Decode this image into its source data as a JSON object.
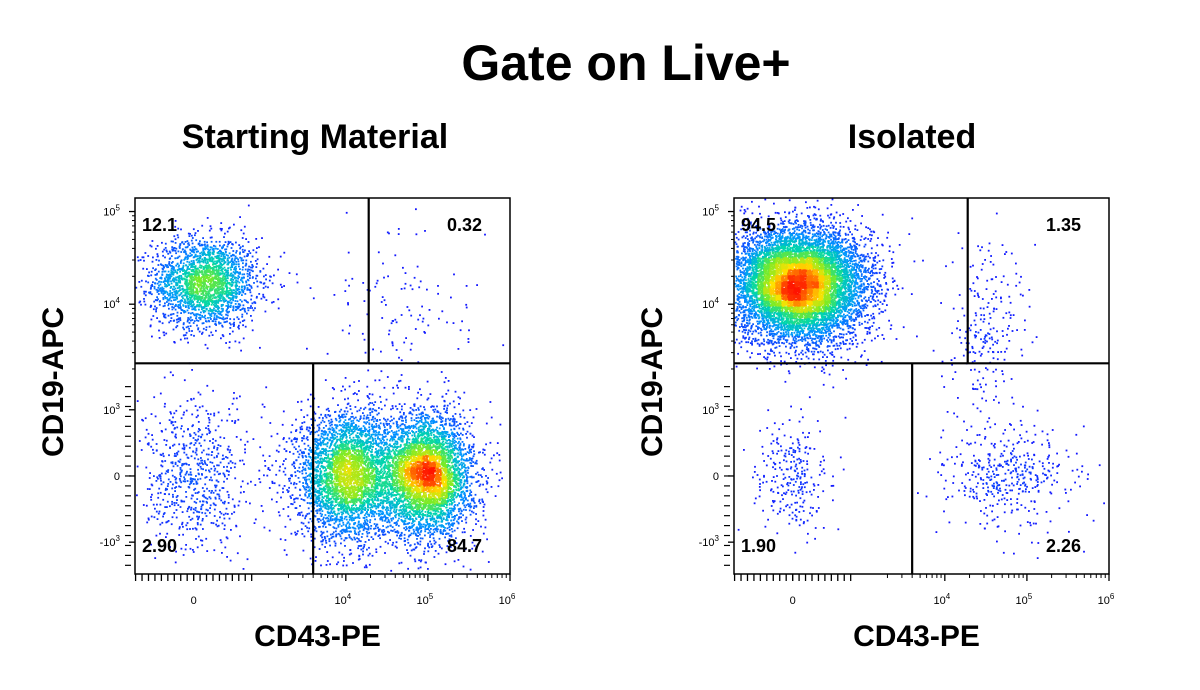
{
  "title": "Gate on Live+",
  "colors": {
    "density_low": "#1a1aff",
    "density_high": "#ff1a00",
    "line": "#000000"
  },
  "chart_data": [
    {
      "type": "scatter",
      "subtype": "flow-cytometry-density-dot-plot",
      "title": "Starting Material",
      "xlabel": "CD43-PE",
      "ylabel": "CD19-APC",
      "x_scale": "biexponential",
      "y_scale": "biexponential",
      "xlim": [
        -1000,
        1000000
      ],
      "ylim": [
        -1600,
        140000
      ],
      "x_ticks": [
        {
          "value": 0,
          "label": "0"
        },
        {
          "value": 10000,
          "label": "10",
          "sup": "4"
        },
        {
          "value": 100000,
          "label": "10",
          "sup": "5"
        },
        {
          "value": 1000000,
          "label": "10",
          "sup": "6"
        }
      ],
      "y_ticks": [
        {
          "value": 100000,
          "label": "10",
          "sup": "5"
        },
        {
          "value": 10000,
          "label": "10",
          "sup": "4"
        },
        {
          "value": 1000,
          "label": "10",
          "sup": "3"
        },
        {
          "value": 0,
          "label": "0"
        },
        {
          "value": -1000,
          "label": "-10",
          "sup": "3"
        }
      ],
      "gates": {
        "y_split": 2300,
        "x_split_upper": 19000,
        "x_split_lower": 4000
      },
      "quadrants": [
        {
          "position": "top-left",
          "value": "12.1"
        },
        {
          "position": "top-right",
          "value": "0.32"
        },
        {
          "position": "bottom-left",
          "value": "2.90"
        },
        {
          "position": "bottom-right",
          "value": "84.7"
        }
      ],
      "populations": [
        {
          "x": 200,
          "y": 17000,
          "sx": 0.07,
          "sy": 0.06,
          "n": 2300
        },
        {
          "x": 11000,
          "y": 0,
          "sx": 0.07,
          "sy": 0.085,
          "n": 3800
        },
        {
          "x": 100000,
          "y": 0,
          "sx": 0.06,
          "sy": 0.08,
          "n": 4200
        },
        {
          "x": 0,
          "y": 0,
          "sx": 0.08,
          "sy": 0.1,
          "n": 700
        },
        {
          "x": 50000,
          "y": 8000,
          "sx": 0.12,
          "sy": 0.1,
          "n": 120
        }
      ]
    },
    {
      "type": "scatter",
      "subtype": "flow-cytometry-density-dot-plot",
      "title": "Isolated",
      "xlabel": "CD43-PE",
      "ylabel": "CD19-APC",
      "x_scale": "biexponential",
      "y_scale": "biexponential",
      "xlim": [
        -1000,
        1000000
      ],
      "ylim": [
        -1600,
        140000
      ],
      "x_ticks": [
        {
          "value": 0,
          "label": "0"
        },
        {
          "value": 10000,
          "label": "10",
          "sup": "4"
        },
        {
          "value": 100000,
          "label": "10",
          "sup": "5"
        },
        {
          "value": 1000000,
          "label": "10",
          "sup": "6"
        }
      ],
      "y_ticks": [
        {
          "value": 100000,
          "label": "10",
          "sup": "5"
        },
        {
          "value": 10000,
          "label": "10",
          "sup": "4"
        },
        {
          "value": 1000,
          "label": "10",
          "sup": "3"
        },
        {
          "value": 0,
          "label": "0"
        },
        {
          "value": -1000,
          "label": "-10",
          "sup": "3"
        }
      ],
      "gates": {
        "y_split": 2300,
        "x_split_upper": 19000,
        "x_split_lower": 4000
      },
      "quadrants": [
        {
          "position": "top-left",
          "value": "94.5"
        },
        {
          "position": "top-right",
          "value": "1.35"
        },
        {
          "position": "bottom-left",
          "value": "1.90"
        },
        {
          "position": "bottom-right",
          "value": "2.26"
        }
      ],
      "populations": [
        {
          "x": 100,
          "y": 16000,
          "sx": 0.09,
          "sy": 0.075,
          "n": 9000
        },
        {
          "x": 30000,
          "y": 6000,
          "sx": 0.06,
          "sy": 0.1,
          "n": 220
        },
        {
          "x": 0,
          "y": 0,
          "sx": 0.05,
          "sy": 0.08,
          "n": 260
        },
        {
          "x": 60000,
          "y": 0,
          "sx": 0.09,
          "sy": 0.07,
          "n": 420
        }
      ]
    }
  ]
}
